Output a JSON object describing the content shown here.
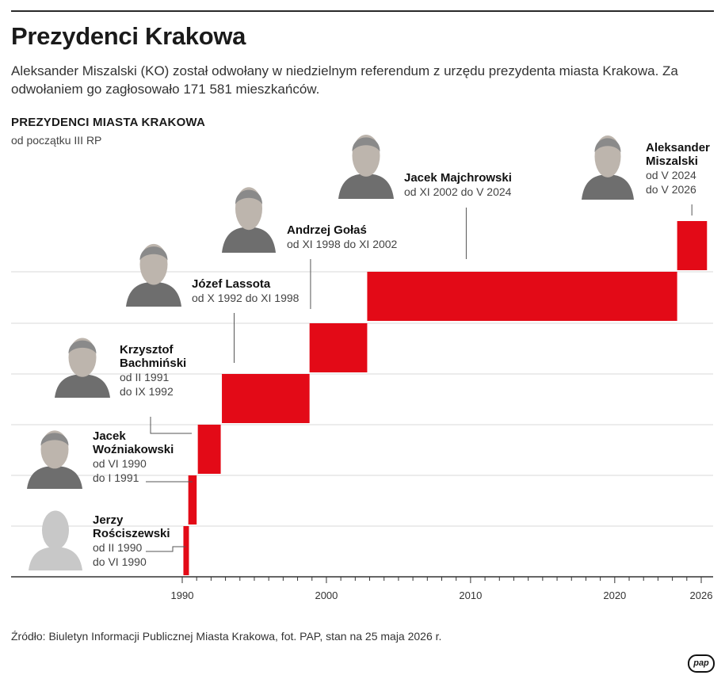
{
  "headline": "Prezydenci Krakowa",
  "lede": "Aleksander Miszalski (KO) został odwołany w niedzielnym referendum z urzędu prezydenta miasta Krakowa. Za odwołaniem go zagłosowało 171 581 mieszkańców.",
  "source": "Źródło: Biuletyn Informacji Publicznej Miasta Krakowa, fot. PAP, stan na 25 maja 2026 r.",
  "logo": "pap",
  "colors": {
    "bar": "#e30a17",
    "grid": "#d9d9d9",
    "axis": "#333333",
    "leader": "#555555"
  },
  "chart_data": {
    "type": "gantt",
    "title": "PREZYDENCI MIASTA KRAKOWA",
    "subtitle": "od początku III RP",
    "xlim": [
      1990,
      2026
    ],
    "x_ticks": [
      "1990",
      "2000",
      "2010",
      "2020",
      "2026"
    ],
    "grid": "horizontal",
    "series": [
      {
        "name_line1": "Jerzy",
        "name_line2": "Rościszewski",
        "term_line1": "od II 1990",
        "term_line2": "do VI 1990",
        "start": 1990.08,
        "end": 1990.42,
        "photo": "person-silhouette-icon"
      },
      {
        "name_line1": "Jacek",
        "name_line2": "Woźniakowski",
        "term_line1": "od VI 1990",
        "term_line2": "do I 1991",
        "start": 1990.42,
        "end": 1991.0,
        "photo": "person-photo"
      },
      {
        "name_line1": "Krzysztof",
        "name_line2": "Bachmiński",
        "term_line1": "od II 1991",
        "term_line2": "do IX 1992",
        "start": 1991.08,
        "end": 1992.67,
        "photo": "person-photo"
      },
      {
        "name_line1": "Józef Lassota",
        "name_line2": "",
        "term_line1": "od X 1992 do XI 1998",
        "term_line2": "",
        "start": 1992.75,
        "end": 1998.83,
        "photo": "person-photo"
      },
      {
        "name_line1": "Andrzej Gołaś",
        "name_line2": "",
        "term_line1": "od XI 1998 do XI 2002",
        "term_line2": "",
        "start": 1998.83,
        "end": 2002.83,
        "photo": "person-photo"
      },
      {
        "name_line1": "Jacek Majchrowski",
        "name_line2": "",
        "term_line1": "od XI 2002 do V 2024",
        "term_line2": "",
        "start": 2002.83,
        "end": 2024.33,
        "photo": "person-photo"
      },
      {
        "name_line1": "Aleksander",
        "name_line2": "Miszalski",
        "term_line1": "od V 2024",
        "term_line2": "do V 2026",
        "start": 2024.33,
        "end": 2026.4,
        "photo": "person-photo"
      }
    ]
  }
}
